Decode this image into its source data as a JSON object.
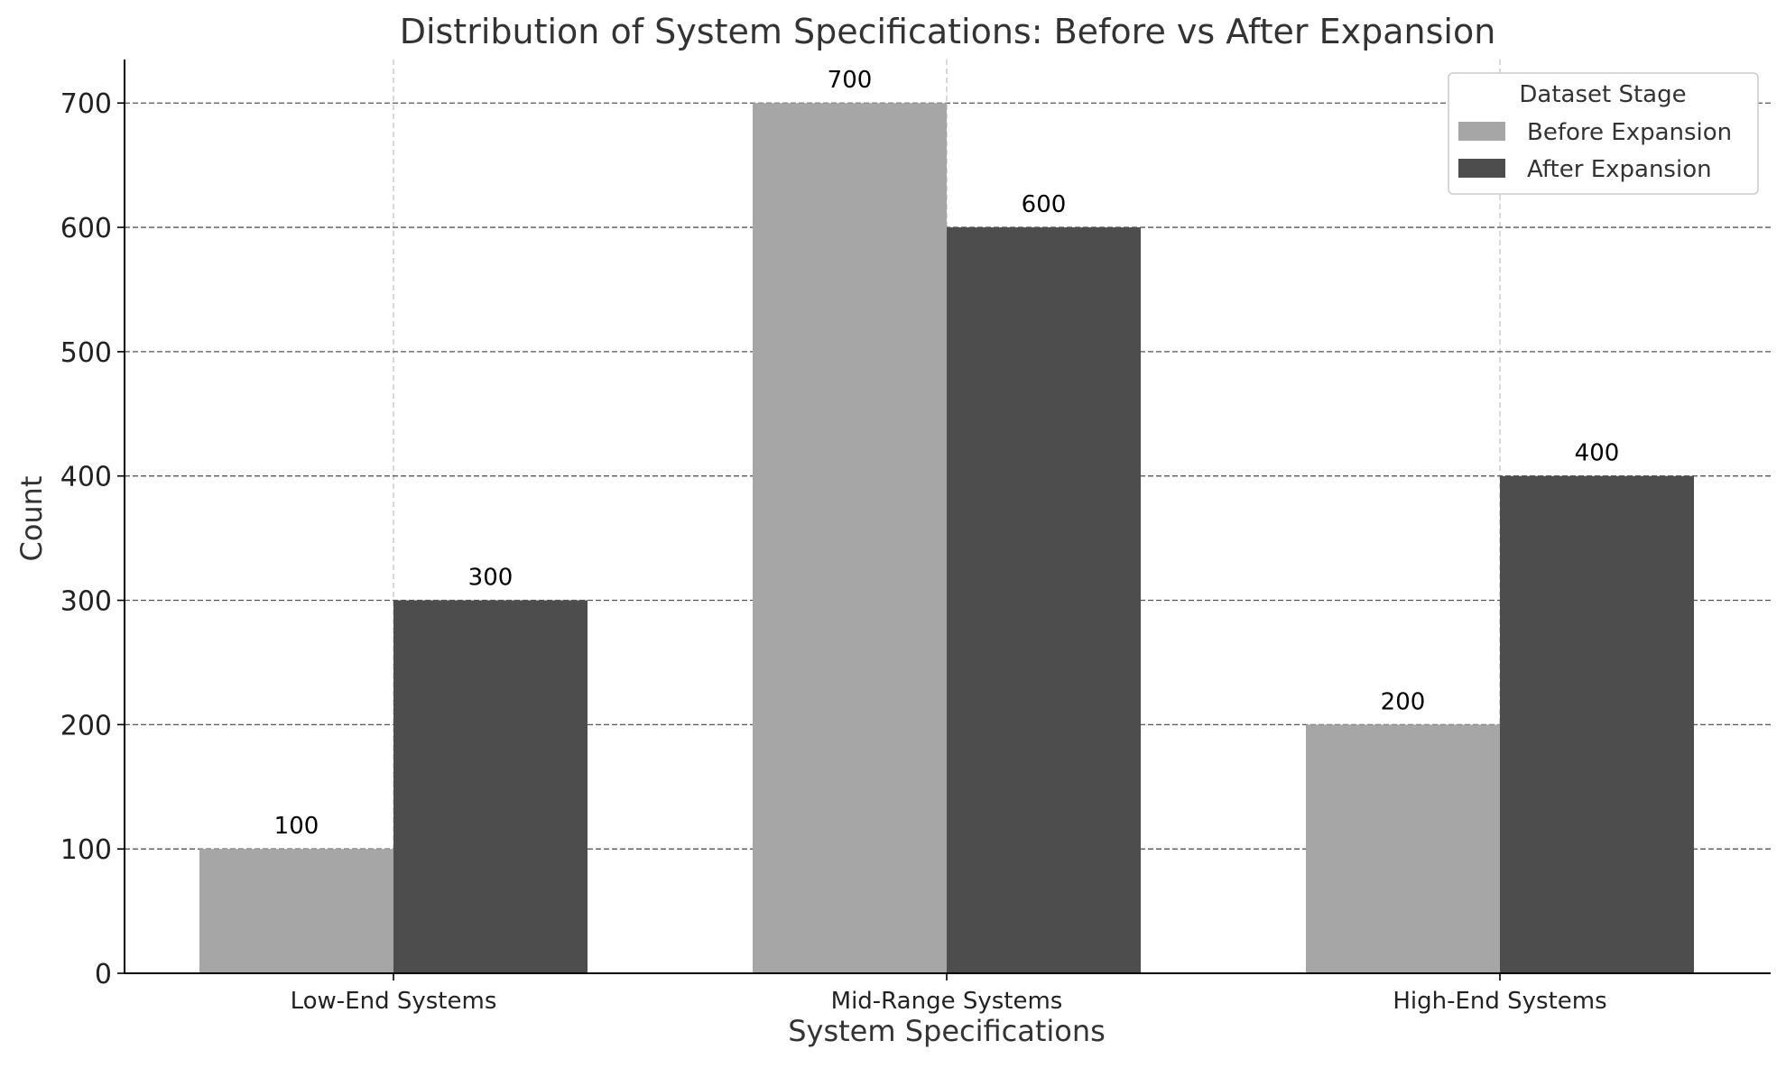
{
  "chart_data": {
    "type": "bar",
    "title": "Distribution of System Specifications: Before vs After Expansion",
    "xlabel": "System Specifications",
    "ylabel": "Count",
    "categories": [
      "Low-End Systems",
      "Mid-Range Systems",
      "High-End Systems"
    ],
    "series": [
      {
        "name": "Before Expansion",
        "values": [
          100,
          700,
          200
        ],
        "color": "#a6a6a6"
      },
      {
        "name": "After Expansion",
        "values": [
          300,
          600,
          400
        ],
        "color": "#4d4d4d"
      }
    ],
    "ylim": [
      0,
      735
    ],
    "yticks": [
      0,
      100,
      200,
      300,
      400,
      500,
      600,
      700
    ],
    "grid": {
      "horizontal": "dashed",
      "vertical": "dashed-light"
    },
    "legend": {
      "title": "Dataset Stage",
      "position": "top-right"
    },
    "colors": {
      "text": "#333333",
      "axis": "#000000"
    }
  }
}
